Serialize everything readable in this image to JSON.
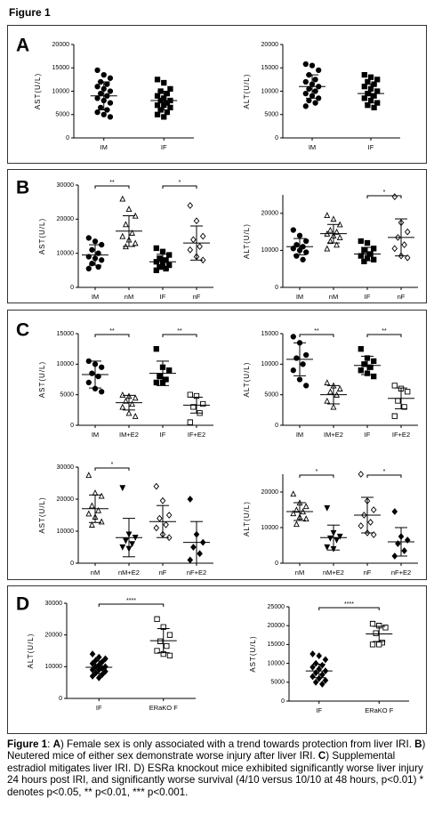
{
  "title": "Figure 1",
  "panel_labels": [
    "A",
    "B",
    "C",
    "D"
  ],
  "chart_data": [
    {
      "type": "dot",
      "ylabel": "AST(U/L)",
      "categories": [
        "IM",
        "IF"
      ],
      "markers": [
        "filled-circle",
        "filled-square"
      ],
      "color": "#000000",
      "values": [
        [
          14500,
          13500,
          12800,
          12000,
          11500,
          11000,
          10500,
          10000,
          9500,
          9000,
          8500,
          8000,
          7500,
          6500,
          6000,
          5500,
          5000,
          4500
        ],
        [
          12500,
          11800,
          10500,
          10000,
          9500,
          9000,
          8500,
          8000,
          8000,
          7500,
          7000,
          7000,
          6500,
          6000,
          5500,
          5000,
          4500
        ]
      ],
      "mean": [
        9000,
        8000
      ],
      "sd": [
        3000,
        2000
      ],
      "ylim": [
        0,
        20000
      ],
      "yticks": [
        0,
        5000,
        10000,
        15000,
        20000
      ],
      "comparisons": []
    },
    {
      "type": "dot",
      "ylabel": "ALT(U/L)",
      "categories": [
        "IM",
        "IF"
      ],
      "markers": [
        "filled-circle",
        "filled-square"
      ],
      "color": "#000000",
      "values": [
        [
          15800,
          15500,
          14500,
          13500,
          12500,
          12000,
          11500,
          11000,
          10500,
          10000,
          9500,
          9000,
          8500,
          8000,
          7500,
          6800
        ],
        [
          13500,
          13000,
          12500,
          12000,
          11500,
          11000,
          10500,
          10000,
          9500,
          9000,
          8500,
          8000,
          7500,
          7000,
          6500
        ]
      ],
      "mean": [
        11000,
        9500
      ],
      "sd": [
        2500,
        2000
      ],
      "ylim": [
        0,
        20000
      ],
      "yticks": [
        0,
        5000,
        10000,
        15000,
        20000
      ],
      "comparisons": []
    },
    {
      "type": "dot",
      "ylabel": "AST(U/L)",
      "categories": [
        "IM",
        "nM",
        "IF",
        "nF"
      ],
      "markers": [
        "filled-circle",
        "open-triangle",
        "filled-square",
        "open-diamond"
      ],
      "color": "#000000",
      "values": [
        [
          14500,
          13500,
          12500,
          11000,
          10000,
          9000,
          8500,
          8000,
          7000,
          6000,
          5500
        ],
        [
          26000,
          23000,
          21000,
          18500,
          16000,
          15000,
          14000,
          13000,
          12000
        ],
        [
          11500,
          10500,
          9500,
          8500,
          8000,
          7500,
          7000,
          6500,
          6000,
          5500,
          5000
        ],
        [
          24000,
          19500,
          15000,
          14000,
          12000,
          11000,
          9000,
          8000
        ]
      ],
      "mean": [
        9500,
        16500,
        7500,
        13000
      ],
      "sd": [
        3000,
        4500,
        2200,
        5000
      ],
      "ylim": [
        0,
        30000
      ],
      "yticks": [
        0,
        10000,
        20000,
        30000
      ],
      "comparisons": [
        {
          "groups": [
            "IM",
            "nM"
          ],
          "label": "**"
        },
        {
          "groups": [
            "IF",
            "nF"
          ],
          "label": "*"
        }
      ]
    },
    {
      "type": "dot",
      "ylabel": "ALT(U/L)",
      "categories": [
        "IM",
        "nM",
        "IF",
        "nF"
      ],
      "markers": [
        "filled-circle",
        "open-triangle",
        "filled-square",
        "open-diamond"
      ],
      "color": "#000000",
      "values": [
        [
          15500,
          14000,
          12500,
          11500,
          11000,
          10500,
          10000,
          9500,
          8500,
          7500
        ],
        [
          19500,
          18500,
          17000,
          15500,
          15000,
          14500,
          14000,
          13500,
          12500,
          11500,
          10500
        ],
        [
          12500,
          12000,
          10500,
          10000,
          9000,
          8500,
          8000,
          7500,
          7000
        ],
        [
          24500,
          17500,
          15000,
          13500,
          11500,
          10500,
          8500,
          8000
        ]
      ],
      "mean": [
        11000,
        14500,
        9000,
        13500
      ],
      "sd": [
        2200,
        2500,
        1800,
        5000
      ],
      "ylim": [
        0,
        25000
      ],
      "yticks": [
        0,
        10000,
        20000
      ],
      "comparisons": [
        {
          "groups": [
            "IF",
            "nF"
          ],
          "label": "*"
        }
      ]
    },
    {
      "type": "dot",
      "ylabel": "AST(U/L)",
      "categories": [
        "IM",
        "IM+E2",
        "IF",
        "IF+E2"
      ],
      "markers": [
        "filled-circle",
        "open-triangle",
        "filled-square",
        "open-square"
      ],
      "color": "#000000",
      "values": [
        [
          10500,
          10000,
          9500,
          8500,
          8000,
          7000,
          6000,
          5500
        ],
        [
          5000,
          4800,
          4500,
          4000,
          3500,
          3000,
          2000,
          1500
        ],
        [
          12500,
          9500,
          9000,
          8000,
          7500,
          7000,
          7000
        ],
        [
          5000,
          4800,
          3500,
          3000,
          2000,
          500
        ]
      ],
      "mean": [
        8300,
        3700,
        8500,
        3300
      ],
      "sd": [
        2200,
        1200,
        2000,
        1300
      ],
      "ylim": [
        0,
        15000
      ],
      "yticks": [
        0,
        5000,
        10000,
        15000
      ],
      "comparisons": [
        {
          "groups": [
            "IM",
            "IM+E2"
          ],
          "label": "**"
        },
        {
          "groups": [
            "IF",
            "IF+E2"
          ],
          "label": "**"
        }
      ]
    },
    {
      "type": "dot",
      "ylabel": "ALT(U/L)",
      "categories": [
        "IM",
        "IM+E2",
        "IF",
        "IF+E2"
      ],
      "markers": [
        "filled-circle",
        "open-triangle",
        "filled-square",
        "open-square"
      ],
      "color": "#000000",
      "values": [
        [
          14500,
          13500,
          11500,
          11000,
          10000,
          9000,
          7500,
          6500
        ],
        [
          7000,
          6500,
          6000,
          5500,
          5000,
          4000,
          3000
        ],
        [
          12500,
          11000,
          10500,
          10000,
          9500,
          9000,
          8500,
          8000
        ],
        [
          6500,
          6000,
          5500,
          4000,
          3000,
          1500
        ]
      ],
      "mean": [
        10800,
        5000,
        9800,
        4400
      ],
      "sd": [
        2700,
        1500,
        1500,
        1700
      ],
      "ylim": [
        0,
        15000
      ],
      "yticks": [
        0,
        5000,
        10000,
        15000
      ],
      "comparisons": [
        {
          "groups": [
            "IM",
            "IM+E2"
          ],
          "label": "**"
        },
        {
          "groups": [
            "IF",
            "IF+E2"
          ],
          "label": "**"
        }
      ]
    },
    {
      "type": "dot",
      "ylabel": "AST(U/L)",
      "categories": [
        "nM",
        "nM+E2",
        "nF",
        "nF+E2"
      ],
      "markers": [
        "open-triangle",
        "filled-triangle-down",
        "open-diamond",
        "filled-diamond"
      ],
      "color": "#000000",
      "values": [
        [
          27500,
          22000,
          21000,
          18000,
          16500,
          15500,
          14500,
          13000,
          12000
        ],
        [
          23500,
          9000,
          8000,
          7000,
          6000,
          5000,
          4500
        ],
        [
          24000,
          19500,
          15000,
          14000,
          12000,
          11000,
          9000,
          8000
        ],
        [
          20000,
          9000,
          6500,
          5000,
          3000,
          1000
        ]
      ],
      "mean": [
        17000,
        8000,
        13000,
        6500
      ],
      "sd": [
        4300,
        6000,
        5000,
        6500
      ],
      "ylim": [
        0,
        30000
      ],
      "yticks": [
        0,
        10000,
        20000,
        30000
      ],
      "comparisons": [
        {
          "groups": [
            "nM",
            "nM+E2"
          ],
          "label": "*"
        }
      ]
    },
    {
      "type": "dot",
      "ylabel": "ALT(U/L)",
      "categories": [
        "nM",
        "nM+E2",
        "nF",
        "nF+E2"
      ],
      "markers": [
        "open-triangle",
        "filled-triangle-down",
        "open-diamond",
        "filled-diamond"
      ],
      "color": "#000000",
      "values": [
        [
          19500,
          17000,
          16000,
          15000,
          14500,
          14000,
          13000,
          12500,
          11000
        ],
        [
          15500,
          8500,
          7500,
          7000,
          6500,
          4500,
          4000
        ],
        [
          25000,
          17500,
          15000,
          13500,
          11500,
          10500,
          8500,
          8000
        ],
        [
          14500,
          7500,
          6500,
          5500,
          3500,
          2000
        ]
      ],
      "mean": [
        14500,
        7200,
        13500,
        6000
      ],
      "sd": [
        2500,
        3500,
        5000,
        4000
      ],
      "ylim": [
        0,
        25000
      ],
      "yticks": [
        0,
        10000,
        20000
      ],
      "comparisons": [
        {
          "groups": [
            "nM",
            "nM+E2"
          ],
          "label": "*"
        },
        {
          "groups": [
            "nF",
            "nF+E2"
          ],
          "label": "*"
        }
      ]
    },
    {
      "type": "dot",
      "ylabel": "ALT(U/L)",
      "categories": [
        "IF",
        "ERaKO F"
      ],
      "markers": [
        "filled-diamond",
        "open-square"
      ],
      "color": "#000000",
      "values": [
        [
          14000,
          13000,
          12500,
          12000,
          11500,
          11000,
          10500,
          10000,
          10000,
          9500,
          9000,
          9000,
          8500,
          8000,
          7500,
          7000,
          6500
        ],
        [
          25000,
          22500,
          20000,
          18000,
          16500,
          15000,
          14000,
          13500
        ]
      ],
      "mean": [
        9800,
        18200
      ],
      "sd": [
        2000,
        3800
      ],
      "ylim": [
        0,
        30000
      ],
      "yticks": [
        0,
        10000,
        20000,
        30000
      ],
      "comparisons": [
        {
          "groups": [
            "IF",
            "ERaKO F"
          ],
          "label": "****"
        }
      ]
    },
    {
      "type": "dot",
      "ylabel": "AST(U/L)",
      "categories": [
        "IF",
        "ERaKO F"
      ],
      "markers": [
        "filled-diamond",
        "open-square"
      ],
      "color": "#000000",
      "values": [
        [
          12500,
          12000,
          11000,
          10000,
          9500,
          9000,
          8500,
          8000,
          7500,
          7000,
          6500,
          6000,
          5500,
          5000,
          4500
        ],
        [
          20500,
          20000,
          19500,
          18000,
          15500,
          15000,
          15000
        ]
      ],
      "mean": [
        8000,
        17800
      ],
      "sd": [
        1800,
        2000
      ],
      "ylim": [
        0,
        25000
      ],
      "yticks": [
        0,
        5000,
        10000,
        15000,
        20000,
        25000
      ],
      "comparisons": [
        {
          "groups": [
            "IF",
            "ERaKO F"
          ],
          "label": "****"
        }
      ]
    }
  ],
  "caption": [
    {
      "text": "Figure 1",
      "bold": true
    },
    {
      "text": ": ",
      "bold": false
    },
    {
      "text": "A",
      "bold": true
    },
    {
      "text": ") Female sex is only associated with a trend towards protection from liver IRI. ",
      "bold": false
    },
    {
      "text": "B",
      "bold": true
    },
    {
      "text": ") Neutered mice of either sex demonstrate worse injury after liver IRI. ",
      "bold": false
    },
    {
      "text": "C",
      "bold": true
    },
    {
      "text": ") Supplemental estradiol mitigates liver IRI. D) ESRa knockout mice exhibited significantly worse liver injury 24 hours post IRI, and significantly worse survival (4/10 versus 10/10 at 48 hours, p<0.01) * denotes p<0.05, ** p<0.01, *** p<0.001.",
      "bold": false
    }
  ]
}
